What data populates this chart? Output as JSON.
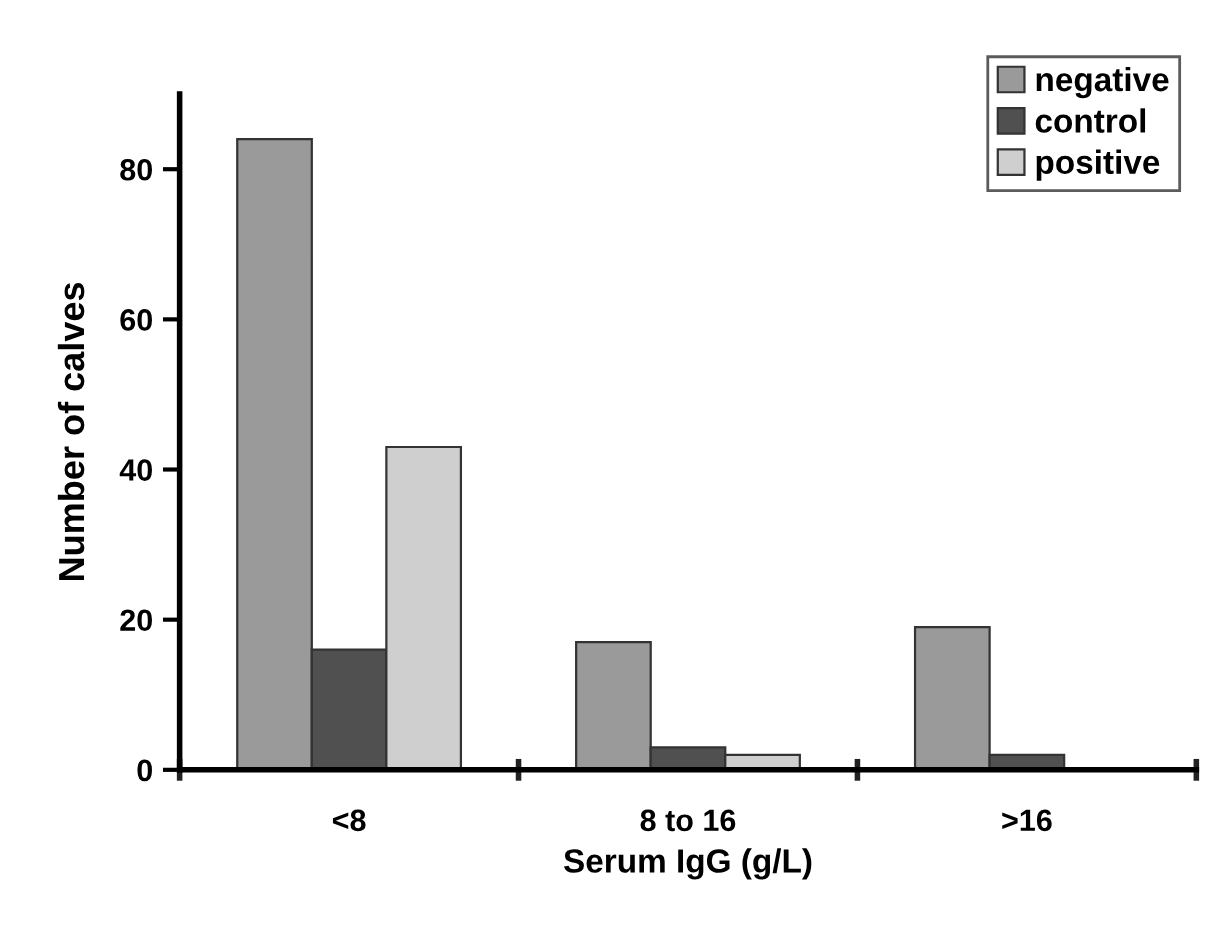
{
  "chart_data": {
    "type": "bar",
    "xlabel": "Serum IgG (g/L)",
    "ylabel": "Number of calves",
    "categories": [
      "<8",
      "8 to 16",
      ">16"
    ],
    "series": [
      {
        "name": "negative",
        "color": "#9a9a9a",
        "values": [
          84,
          17,
          19
        ]
      },
      {
        "name": "control",
        "color": "#505050",
        "values": [
          16,
          3,
          2
        ]
      },
      {
        "name": "positive",
        "color": "#cfcfcf",
        "values": [
          43,
          2,
          null
        ]
      }
    ],
    "ylim": [
      0,
      90
    ],
    "yticks": [
      0,
      20,
      40,
      60,
      80
    ],
    "grid": false,
    "legend": "top right"
  }
}
